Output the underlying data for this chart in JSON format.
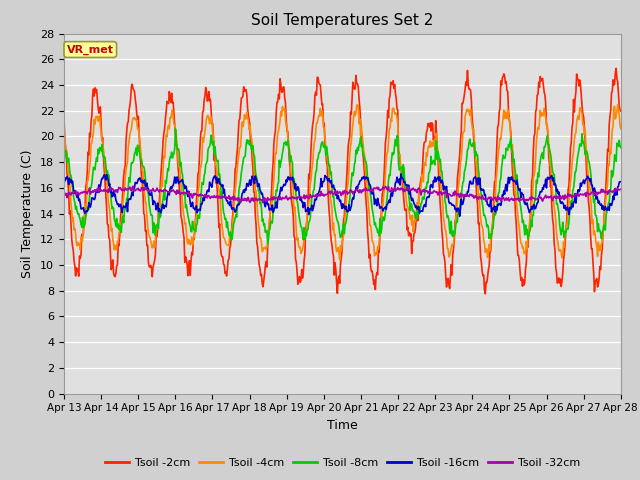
{
  "title": "Soil Temperatures Set 2",
  "xlabel": "Time",
  "ylabel": "Soil Temperature (C)",
  "ylim": [
    0,
    28
  ],
  "yticks": [
    0,
    2,
    4,
    6,
    8,
    10,
    12,
    14,
    16,
    18,
    20,
    22,
    24,
    26,
    28
  ],
  "x_tick_labels": [
    "Apr 13",
    "Apr 14",
    "Apr 15",
    "Apr 16",
    "Apr 17",
    "Apr 18",
    "Apr 19",
    "Apr 20",
    "Apr 21",
    "Apr 22",
    "Apr 23",
    "Apr 24",
    "Apr 25",
    "Apr 26",
    "Apr 27",
    "Apr 28"
  ],
  "series_colors": [
    "#ff2200",
    "#ff8800",
    "#00cc00",
    "#0000cc",
    "#aa00aa"
  ],
  "series_labels": [
    "Tsoil -2cm",
    "Tsoil -4cm",
    "Tsoil -8cm",
    "Tsoil -16cm",
    "Tsoil -32cm"
  ],
  "linewidth": 1.2,
  "fig_bg_color": "#d0d0d0",
  "plot_bg_color": "#e0e0e0",
  "grid_color": "#ffffff",
  "annotation_text": "VR_met",
  "annotation_fg": "#cc0000",
  "annotation_bg": "#ffff99",
  "annotation_border": "#999933"
}
